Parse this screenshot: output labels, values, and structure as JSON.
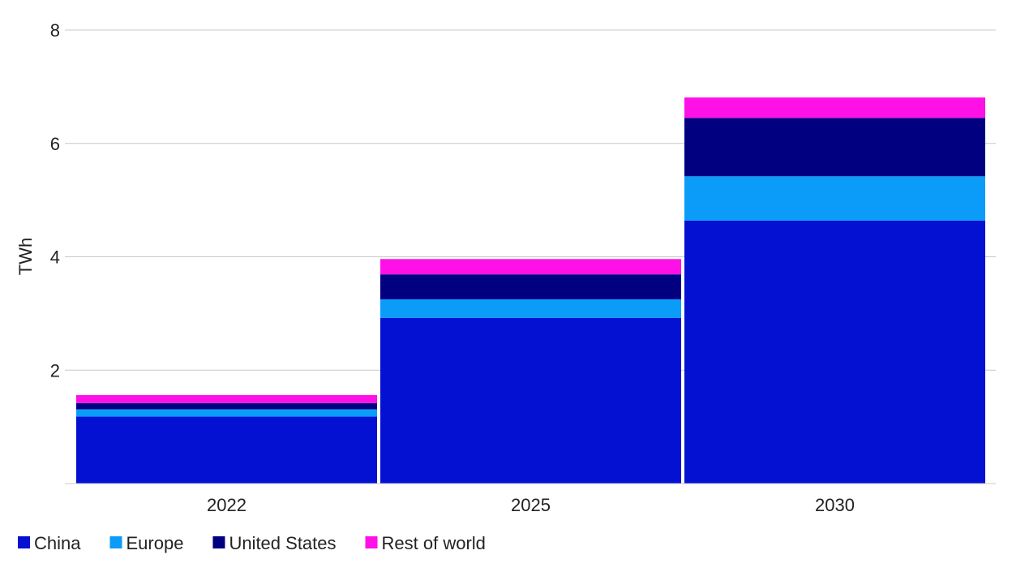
{
  "chart_data": {
    "type": "bar",
    "stacked": true,
    "categories": [
      "2022",
      "2025",
      "2030"
    ],
    "series": [
      {
        "name": "China",
        "color": "#0410D2",
        "values": [
          1.18,
          2.92,
          4.64
        ]
      },
      {
        "name": "Europe",
        "color": "#0A9CF8",
        "values": [
          0.13,
          0.33,
          0.78
        ]
      },
      {
        "name": "United States",
        "color": "#000080",
        "values": [
          0.11,
          0.44,
          1.03
        ]
      },
      {
        "name": "Rest of world",
        "color": "#FF10E6",
        "values": [
          0.14,
          0.27,
          0.36
        ]
      }
    ],
    "title": "",
    "xlabel": "",
    "ylabel": "TWh",
    "ylim": [
      0,
      8
    ],
    "yticks": [
      "2",
      "4",
      "6",
      "8"
    ],
    "grid": true,
    "legend_position": "bottom-left"
  }
}
